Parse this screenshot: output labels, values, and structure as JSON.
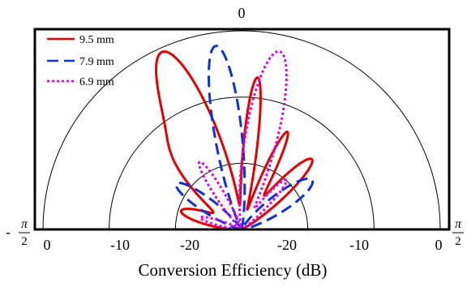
{
  "chart_data": {
    "type": "polar",
    "angle_labels": {
      "top": "0",
      "left_sign": "-",
      "left_num": "π",
      "left_den": "2",
      "right_num": "π",
      "right_den": "2"
    },
    "radial_tick_labels": [
      "0",
      "-10",
      "-20",
      "-20",
      "-10",
      "0"
    ],
    "xlabel": "Conversion Efficiency (dB)",
    "rlim": [
      -30,
      0
    ],
    "rings": [
      -10,
      -20
    ],
    "grid": true,
    "legend_position": "top-left",
    "series": [
      {
        "name": "9.5 mm",
        "color": "#e60000",
        "dash": "solid",
        "lobes": [
          {
            "center_deg": -73,
            "peak_db": -20.5,
            "width_deg": 12
          },
          {
            "center_deg": -42,
            "peak_db": -16.0,
            "width_deg": 13
          },
          {
            "center_deg": -23,
            "peak_db": -2.5,
            "width_deg": 12
          },
          {
            "center_deg": 6,
            "peak_db": -7.0,
            "width_deg": 6
          },
          {
            "center_deg": 25,
            "peak_db": -14.0,
            "width_deg": 6
          },
          {
            "center_deg": 45,
            "peak_db": -15.0,
            "width_deg": 10
          }
        ]
      },
      {
        "name": "7.9 mm",
        "color": "#1030e0",
        "dash": "dashed",
        "lobes": [
          {
            "center_deg": -55,
            "peak_db": -18.0,
            "width_deg": 12
          },
          {
            "center_deg": -8,
            "peak_db": -2.0,
            "width_deg": 10
          },
          {
            "center_deg": 55,
            "peak_db": -17.0,
            "width_deg": 14
          }
        ]
      },
      {
        "name": "6.9 mm",
        "color": "#e600e6",
        "dash": "dotted",
        "lobes": [
          {
            "center_deg": -74,
            "peak_db": -23.5,
            "width_deg": 8
          },
          {
            "center_deg": -32,
            "peak_db": -18.0,
            "width_deg": 8
          },
          {
            "center_deg": 12,
            "peak_db": -2.5,
            "width_deg": 12
          },
          {
            "center_deg": 42,
            "peak_db": -20.0,
            "width_deg": 8
          }
        ]
      }
    ]
  }
}
